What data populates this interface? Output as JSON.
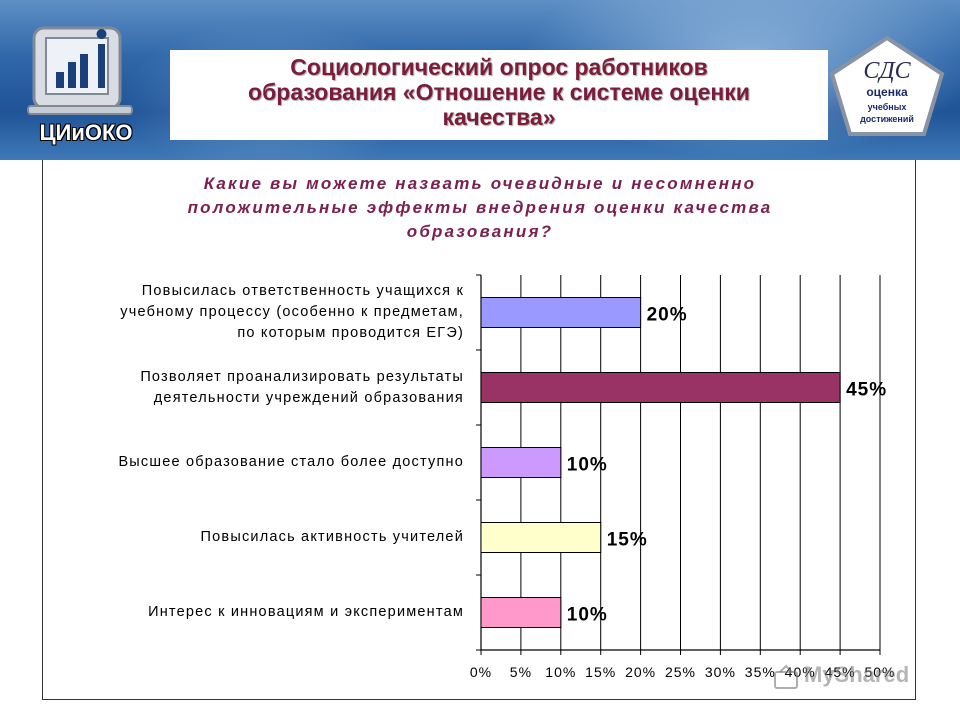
{
  "header": {
    "title": "Социологический опрос работников\nобразования «Отношение к системе оценки\nкачества»",
    "logo_left_text": "ЦИиОКО",
    "logo_right_lines": [
      "СДС",
      "оценка",
      "учебных",
      "достижений"
    ]
  },
  "colors": {
    "title": "#7b1d3a",
    "question": "#7b2150",
    "banner": "#2f68aa"
  },
  "watermark": "MyShared",
  "chart_data": {
    "type": "bar",
    "orientation": "horizontal",
    "title": "Какие вы можете назвать очевидные и несомненно\nположительные эффекты внедрения оценки качества\nобразования?",
    "categories": [
      "Повысилась ответственность учащихся к\nучебному процессу (особенно к предметам,\nпо которым проводится ЕГЭ)",
      "Позволяет проанализировать результаты\nдеятельности учреждений образования",
      "Высшее образование стало более доступно",
      "Повысилась активность учителей",
      "Интерес к инновациям и экспериментам"
    ],
    "values": [
      20,
      45,
      10,
      15,
      10
    ],
    "value_labels": [
      "20%",
      "45%",
      "10%",
      "15%",
      "10%"
    ],
    "bar_colors": [
      "#9999ff",
      "#993366",
      "#cc99ff",
      "#ffffcc",
      "#ff99cc"
    ],
    "xlim": [
      0,
      50
    ],
    "x_ticks": [
      "0%",
      "5%",
      "10%",
      "15%",
      "20%",
      "25%",
      "30%",
      "35%",
      "40%",
      "45%",
      "50%"
    ],
    "grid": true,
    "legend": "none"
  }
}
